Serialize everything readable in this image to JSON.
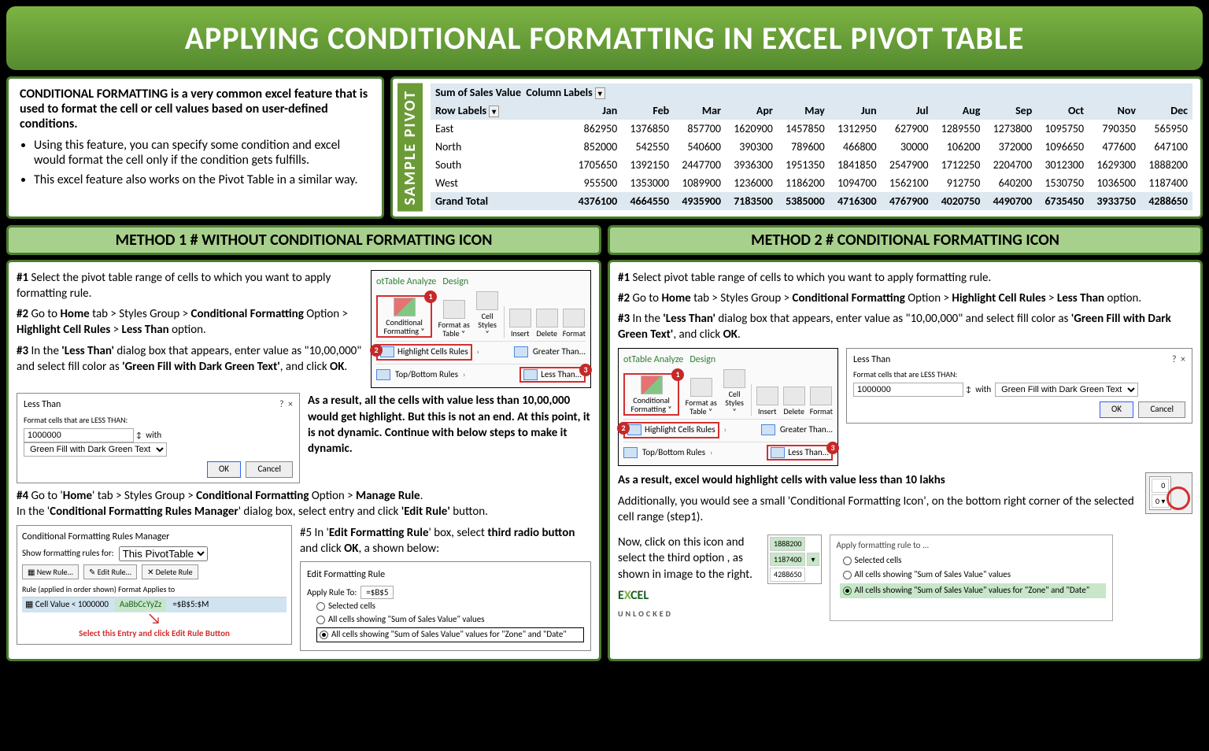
{
  "title": "APPLYING CONDITIONAL FORMATTING IN EXCEL PIVOT TABLE",
  "intro": {
    "lead": "CONDITIONAL FORMATTING is a very common excel feature that is used to format the cell or cell values based on user-defined conditions.",
    "bullets": [
      "Using this feature, you can specify some condition and excel would format the cell only if the condition gets fulfills.",
      "This excel feature also works on the Pivot Table in a similar way."
    ]
  },
  "sample_label": "SAMPLE PIVOT",
  "pivot": {
    "corner1": "Sum of Sales Value",
    "corner2": "Column Labels",
    "rowhead": "Row Labels",
    "months": [
      "Jan",
      "Feb",
      "Mar",
      "Apr",
      "May",
      "Jun",
      "Jul",
      "Aug",
      "Sep",
      "Oct",
      "Nov",
      "Dec"
    ],
    "rows": [
      {
        "label": "East",
        "vals": [
          862950,
          1376850,
          857700,
          1620900,
          1457850,
          1312950,
          627900,
          1289550,
          1273800,
          1095750,
          790350,
          565950
        ]
      },
      {
        "label": "North",
        "vals": [
          852000,
          542550,
          540600,
          390300,
          789600,
          466800,
          30000,
          106200,
          372000,
          1096650,
          477600,
          647100
        ]
      },
      {
        "label": "South",
        "vals": [
          1705650,
          1392150,
          2447700,
          3936300,
          1951350,
          1841850,
          2547900,
          1712250,
          2204700,
          3012300,
          1629300,
          1888200
        ]
      },
      {
        "label": "West",
        "vals": [
          955500,
          1353000,
          1089900,
          1236000,
          1186200,
          1094700,
          1562100,
          912750,
          640200,
          1530750,
          1036500,
          1187400
        ]
      }
    ],
    "grand": {
      "label": "Grand Total",
      "vals": [
        4376100,
        4664550,
        4935900,
        7183500,
        5385000,
        4716300,
        4767900,
        4020750,
        4490700,
        6735450,
        3933750,
        4288650
      ]
    }
  },
  "method1": {
    "head_bold": "METHOD 1",
    "head_rest": " # WITHOUT CONDITIONAL FORMATTING ICON",
    "s1": "#1 Select the pivot table range of cells to which you want to apply formatting rule.",
    "s2a": "#2 Go to ",
    "s2_parts": [
      "Home",
      " tab > Styles Group > ",
      "Conditional Formatting",
      " Option > ",
      "Highlight Cell Rules",
      " > ",
      "Less Than",
      " option."
    ],
    "s3a": "#3 In the ",
    "s3_parts": [
      "'Less Than'",
      " dialog box that appears, enter value as \"10,00,000\" and select fill color as  ",
      "'Green Fill with Dark Green Text'",
      ", and click ",
      "OK",
      "."
    ],
    "result": "As a result, all the cells with value less than 10,00,000 would get highlight. But this is not an end. At this point, it is not dynamic. Continue with below steps to make it dynamic.",
    "s4a": "#4 Go to '",
    "s4_parts": [
      "Home",
      "' tab > Styles Group > ",
      "Conditional Formatting",
      " Option > ",
      "Manage Rule",
      "."
    ],
    "s4b_pre": "In the '",
    "s4b_parts": [
      "Conditional Formatting Rules Manager",
      "' dialog box, select entry and click ",
      "'Edit Rule'",
      " button."
    ],
    "s5a": "#5 In '",
    "s5_parts": [
      "Edit Formatting Rule",
      "' box, select ",
      "third radio button",
      " and click ",
      "OK",
      ", a shown below:"
    ]
  },
  "method2": {
    "head_bold": "METHOD 2",
    "head_rest": " # CONDITIONAL FORMATTING ICON",
    "s1": "#1 Select pivot table range of cells to which you want to apply formatting rule.",
    "s2a": "#2 Go to ",
    "s2_parts": [
      "Home",
      " tab > Styles Group > ",
      "Conditional Formatting",
      " Option > ",
      "Highlight Cell Rules",
      " > ",
      "Less Than",
      " option."
    ],
    "s3a": "#3 In the ",
    "s3_parts": [
      "'Less Than'",
      " dialog box that appears, enter value as \"10,00,000\" and select fill color as  ",
      "'Green Fill with Dark Green Text'",
      ", and click ",
      "OK",
      "."
    ],
    "res1_bold": "As a result, excel would highlight cells with value less than 10 lakhs",
    "res2": "Additionally, you would see a small 'Conditional Formatting Icon', on the bottom right corner of the selected cell range (step1).",
    "res3": "Now, click on this icon and select the third option , as shown in image to the right."
  },
  "ribbon": {
    "tab1": "otTable Analyze",
    "tab2": "Design",
    "cf": "Conditional Formatting",
    "fat": "Format as Table",
    "cs": "Cell Styles",
    "ins": "Insert",
    "del": "Delete",
    "fmt": "Format",
    "hcr": "Highlight Cells Rules",
    "tbr": "Top/Bottom Rules",
    "gt": "Greater Than...",
    "lt": "Less Than..."
  },
  "lessthan": {
    "title": "Less Than",
    "label": "Format cells that are LESS THAN:",
    "value": "1000000",
    "with": "with",
    "fill": "Green Fill with Dark Green Text",
    "ok": "OK",
    "cancel": "Cancel"
  },
  "rules_mgr": {
    "title": "Conditional Formatting Rules Manager",
    "showfor": "Show formatting rules for:",
    "scope": "This PivotTable",
    "new": "New Rule...",
    "edit": "Edit Rule...",
    "delete": "Delete Rule",
    "colhead": "Rule (applied in order shown)      Format                     Applies to",
    "rule": "Cell Value < 1000000",
    "sample": "AaBbCcYyZz",
    "applies": "=$B$5:$M",
    "callout": "Select this Entry and click Edit Rule Button"
  },
  "edit_rule": {
    "title": "Edit Formatting Rule",
    "apply_to": "Apply Rule To:",
    "ref": "=$B$5",
    "r1": "Selected cells",
    "r2": "All cells showing \"Sum of Sales Value\" values",
    "r3": "All cells showing \"Sum of Sales Value\" values for \"Zone\" and \"Date\""
  },
  "cf_popup": {
    "title": "Apply formatting rule to ...",
    "r1": "Selected cells",
    "r2": "All cells showing \"Sum of Sales Value\" values",
    "r3": "All cells showing \"Sum of Sales Value\" values for \"Zone\" and \"Date\""
  },
  "mini": {
    "vals": [
      "1888200",
      "1187400",
      "4288650"
    ]
  },
  "logo": {
    "line1": "EXCEL",
    "line2": "UNLOCKED"
  },
  "colors": {
    "green_border": "#4a7c2e",
    "green_header": "#a8d08d",
    "title_grad_top": "#7cb342",
    "title_grad_bot": "#558b2f",
    "pivot_header": "#dde8f0",
    "highlight_green": "#c8e6c9",
    "red": "#d32f2f"
  }
}
